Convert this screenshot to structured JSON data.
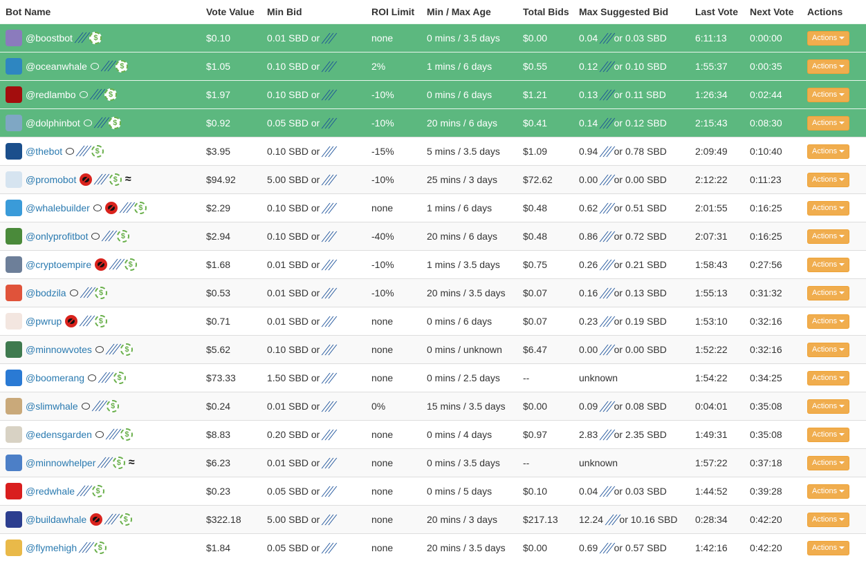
{
  "headers": [
    "Bot Name",
    "Vote Value",
    "Min Bid",
    "ROI Limit",
    "Min / Max Age",
    "Total Bids",
    "Max Suggested Bid",
    "Last Vote",
    "Next Vote",
    "Actions"
  ],
  "actions_label": "Actions",
  "colors": {
    "highlight_row": "#5cb87f",
    "link": "#2a7ab0",
    "actions_button": "#f0ad4e",
    "steem": "#1a5099",
    "dollar": "#6ab04c",
    "no_comment": "#d9231d"
  },
  "rows": [
    {
      "name": "@boostbot",
      "icons": [
        "steem",
        "dollar"
      ],
      "vote": "$0.10",
      "minbid_amt": "0.01 SBD or",
      "roi": "none",
      "age": "0 mins / 3.5 days",
      "total": "$0.00",
      "max_a": "0.04",
      "max_b": "or 0.03 SBD",
      "last": "6:11:13",
      "next": "0:00:00",
      "hl": true,
      "avatar": "#8b7bbd"
    },
    {
      "name": "@oceanwhale",
      "icons": [
        "comment",
        "steem",
        "dollar"
      ],
      "vote": "$1.05",
      "minbid_amt": "0.10 SBD or",
      "roi": "2%",
      "age": "1 mins / 6 days",
      "total": "$0.55",
      "max_a": "0.12",
      "max_b": "or 0.10 SBD",
      "last": "1:55:37",
      "next": "0:00:35",
      "hl": true,
      "avatar": "#2e86c1"
    },
    {
      "name": "@redlambo",
      "icons": [
        "comment",
        "steem",
        "dollar"
      ],
      "vote": "$1.97",
      "minbid_amt": "0.10 SBD or",
      "roi": "-10%",
      "age": "0 mins / 6 days",
      "total": "$1.21",
      "max_a": "0.13",
      "max_b": "or 0.11 SBD",
      "last": "1:26:34",
      "next": "0:02:44",
      "hl": true,
      "avatar": "#a30d0d"
    },
    {
      "name": "@dolphinbot",
      "icons": [
        "comment",
        "steem",
        "dollar"
      ],
      "vote": "$0.92",
      "minbid_amt": "0.05 SBD or",
      "roi": "-10%",
      "age": "20 mins / 6 days",
      "total": "$0.41",
      "max_a": "0.14",
      "max_b": "or 0.12 SBD",
      "last": "2:15:43",
      "next": "0:08:30",
      "hl": true,
      "avatar": "#7fa7c4"
    },
    {
      "name": "@thebot",
      "icons": [
        "comment",
        "steem",
        "dollar"
      ],
      "vote": "$3.95",
      "minbid_amt": "0.10 SBD or",
      "roi": "-15%",
      "age": "5 mins / 3.5 days",
      "total": "$1.09",
      "max_a": "0.94",
      "max_b": "or 0.78 SBD",
      "last": "2:09:49",
      "next": "0:10:40",
      "hl": false,
      "avatar": "#1b4f8c"
    },
    {
      "name": "@promobot",
      "icons": [
        "nocomment",
        "steem",
        "dollar",
        "hand"
      ],
      "vote": "$94.92",
      "minbid_amt": "5.00 SBD or",
      "roi": "-10%",
      "age": "25 mins / 3 days",
      "total": "$72.62",
      "max_a": "0.00",
      "max_b": "or 0.00 SBD",
      "last": "2:12:22",
      "next": "0:11:23",
      "hl": false,
      "avatar": "#d6e4f0"
    },
    {
      "name": "@whalebuilder",
      "icons": [
        "comment",
        "nocomment",
        "steem",
        "dollar"
      ],
      "vote": "$2.29",
      "minbid_amt": "0.10 SBD or",
      "roi": "none",
      "age": "1 mins / 6 days",
      "total": "$0.48",
      "max_a": "0.62",
      "max_b": "or 0.51 SBD",
      "last": "2:01:55",
      "next": "0:16:25",
      "hl": false,
      "avatar": "#3a9bd9"
    },
    {
      "name": "@onlyprofitbot",
      "icons": [
        "comment",
        "steem",
        "dollar"
      ],
      "vote": "$2.94",
      "minbid_amt": "0.10 SBD or",
      "roi": "-40%",
      "age": "20 mins / 6 days",
      "total": "$0.48",
      "max_a": "0.86",
      "max_b": "or 0.72 SBD",
      "last": "2:07:31",
      "next": "0:16:25",
      "hl": false,
      "avatar": "#4a8a3a"
    },
    {
      "name": "@cryptoempire",
      "icons": [
        "nocomment",
        "steem",
        "dollar"
      ],
      "vote": "$1.68",
      "minbid_amt": "0.01 SBD or",
      "roi": "-10%",
      "age": "1 mins / 3.5 days",
      "total": "$0.75",
      "max_a": "0.26",
      "max_b": "or 0.21 SBD",
      "last": "1:58:43",
      "next": "0:27:56",
      "hl": false,
      "avatar": "#6d7f99"
    },
    {
      "name": "@bodzila",
      "icons": [
        "comment",
        "steem",
        "dollar"
      ],
      "vote": "$0.53",
      "minbid_amt": "0.01 SBD or",
      "roi": "-10%",
      "age": "20 mins / 3.5 days",
      "total": "$0.07",
      "max_a": "0.16",
      "max_b": "or 0.13 SBD",
      "last": "1:55:13",
      "next": "0:31:32",
      "hl": false,
      "avatar": "#e0533a"
    },
    {
      "name": "@pwrup",
      "icons": [
        "nocomment",
        "steem",
        "dollar"
      ],
      "vote": "$0.71",
      "minbid_amt": "0.01 SBD or",
      "roi": "none",
      "age": "0 mins / 6 days",
      "total": "$0.07",
      "max_a": "0.23",
      "max_b": "or 0.19 SBD",
      "last": "1:53:10",
      "next": "0:32:16",
      "hl": false,
      "avatar": "#f3e6e0"
    },
    {
      "name": "@minnowvotes",
      "icons": [
        "comment",
        "steem",
        "dollar"
      ],
      "vote": "$5.62",
      "minbid_amt": "0.10 SBD or",
      "roi": "none",
      "age": "0 mins / unknown",
      "total": "$6.47",
      "max_a": "0.00",
      "max_b": "or 0.00 SBD",
      "last": "1:52:22",
      "next": "0:32:16",
      "hl": false,
      "avatar": "#3f7a4f"
    },
    {
      "name": "@boomerang",
      "icons": [
        "comment",
        "steem",
        "dollar"
      ],
      "vote": "$73.33",
      "minbid_amt": "1.50 SBD or",
      "roi": "none",
      "age": "0 mins / 2.5 days",
      "total": "--",
      "max_a": "unknown",
      "max_b": "",
      "last": "1:54:22",
      "next": "0:34:25",
      "hl": false,
      "avatar": "#2a7ad4"
    },
    {
      "name": "@slimwhale",
      "icons": [
        "comment",
        "steem",
        "dollar"
      ],
      "vote": "$0.24",
      "minbid_amt": "0.01 SBD or",
      "roi": "0%",
      "age": "15 mins / 3.5 days",
      "total": "$0.00",
      "max_a": "0.09",
      "max_b": "or 0.08 SBD",
      "last": "0:04:01",
      "next": "0:35:08",
      "hl": false,
      "avatar": "#c9a97a"
    },
    {
      "name": "@edensgarden",
      "icons": [
        "comment",
        "steem",
        "dollar"
      ],
      "vote": "$8.83",
      "minbid_amt": "0.20 SBD or",
      "roi": "none",
      "age": "0 mins / 4 days",
      "total": "$0.97",
      "max_a": "2.83",
      "max_b": "or 2.35 SBD",
      "last": "1:49:31",
      "next": "0:35:08",
      "hl": false,
      "avatar": "#d8d2c4"
    },
    {
      "name": "@minnowhelper",
      "icons": [
        "steem",
        "dollar",
        "hand"
      ],
      "vote": "$6.23",
      "minbid_amt": "0.01 SBD or",
      "roi": "none",
      "age": "0 mins / 3.5 days",
      "total": "--",
      "max_a": "unknown",
      "max_b": "",
      "last": "1:57:22",
      "next": "0:37:18",
      "hl": false,
      "avatar": "#4c7fc7"
    },
    {
      "name": "@redwhale",
      "icons": [
        "steem",
        "dollar"
      ],
      "vote": "$0.23",
      "minbid_amt": "0.05 SBD or",
      "roi": "none",
      "age": "0 mins / 5 days",
      "total": "$0.10",
      "max_a": "0.04",
      "max_b": "or 0.03 SBD",
      "last": "1:44:52",
      "next": "0:39:28",
      "hl": false,
      "avatar": "#d91e1e"
    },
    {
      "name": "@buildawhale",
      "icons": [
        "nocomment",
        "steem",
        "dollar"
      ],
      "vote": "$322.18",
      "minbid_amt": "5.00 SBD or",
      "roi": "none",
      "age": "20 mins / 3 days",
      "total": "$217.13",
      "max_a": "12.24",
      "max_b": "or 10.16 SBD",
      "last": "0:28:34",
      "next": "0:42:20",
      "hl": false,
      "avatar": "#2c3e8f"
    },
    {
      "name": "@flymehigh",
      "icons": [
        "steem",
        "dollar"
      ],
      "vote": "$1.84",
      "minbid_amt": "0.05 SBD or",
      "roi": "none",
      "age": "20 mins / 3.5 days",
      "total": "$0.00",
      "max_a": "0.69",
      "max_b": "or 0.57 SBD",
      "last": "1:42:16",
      "next": "0:42:20",
      "hl": false,
      "avatar": "#e9b949"
    }
  ]
}
